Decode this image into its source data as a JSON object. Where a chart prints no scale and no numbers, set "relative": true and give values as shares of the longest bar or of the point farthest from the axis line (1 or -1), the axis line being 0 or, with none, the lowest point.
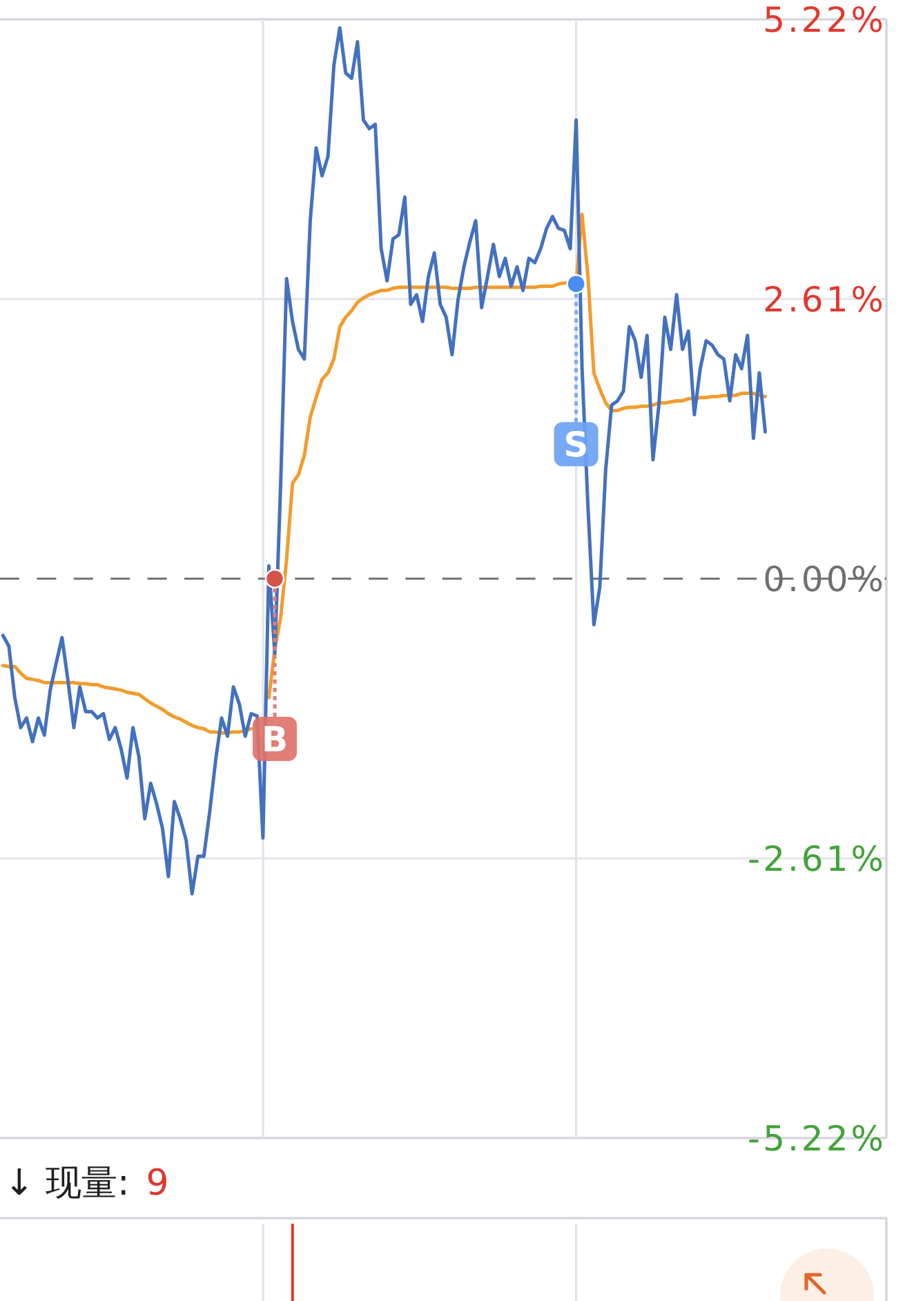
{
  "chart_data": [
    {
      "type": "line",
      "categories": [
        null,
        null,
        null,
        null,
        null,
        null,
        null,
        null,
        null,
        null,
        null,
        null,
        null,
        null,
        null,
        null,
        null,
        null,
        null,
        null,
        null,
        null,
        null,
        null,
        null,
        null,
        null,
        null,
        null,
        null,
        null,
        null,
        null,
        null,
        null,
        null,
        null,
        null,
        null,
        null,
        null,
        null,
        null,
        null,
        null,
        null,
        null,
        null,
        null,
        null,
        null,
        null,
        null,
        null,
        null,
        null,
        null,
        null,
        null,
        null,
        null,
        null,
        null,
        null,
        null,
        null,
        null,
        null,
        null,
        null,
        null,
        null,
        null,
        null,
        null,
        null,
        null,
        null,
        null,
        null,
        null,
        null,
        null,
        null,
        null,
        null,
        null,
        null,
        null,
        null,
        null,
        null,
        null,
        null,
        null,
        null,
        null,
        null,
        null,
        null,
        null,
        null,
        null,
        null,
        null,
        null,
        null,
        null,
        null,
        null,
        null,
        null,
        null,
        null,
        null,
        null,
        null,
        null,
        null,
        null,
        null,
        null,
        null,
        null,
        null,
        null,
        null,
        null,
        null,
        null,
        null,
        null,
        null,
        null,
        null,
        null,
        null,
        null,
        null,
        null,
        null,
        null,
        null,
        null,
        null,
        null,
        null,
        null,
        null,
        null
      ],
      "ylim": [
        -5.22,
        5.22
      ],
      "yticks": [
        {
          "value": 5.22,
          "label": "5.22%"
        },
        {
          "value": 2.61,
          "label": "2.61%"
        },
        {
          "value": 0,
          "label": "0.00%"
        },
        {
          "value": -2.61,
          "label": "-2.61%"
        },
        {
          "value": -5.22,
          "label": "-5.22%"
        }
      ],
      "grid": "y",
      "tick_labels": "y",
      "ref_lines": [
        {
          "axis": "y",
          "value": 0,
          "color": "#707070",
          "line_style": "dashed"
        }
      ],
      "series": [
        {
          "color": "#f29c2e",
          "values": [
            -0.81,
            -0.82,
            -0.82,
            -0.88,
            -0.93,
            -0.94,
            -0.95,
            -0.97,
            -0.97,
            -0.97,
            -0.97,
            -0.97,
            -0.97,
            -0.98,
            -0.98,
            -0.99,
            -0.99,
            -1.01,
            -1.02,
            -1.03,
            -1.04,
            -1.06,
            -1.07,
            -1.08,
            -1.12,
            -1.16,
            -1.19,
            -1.22,
            -1.26,
            -1.29,
            -1.31,
            -1.34,
            -1.37,
            -1.39,
            -1.4,
            -1.43,
            -1.43,
            -1.44,
            -1.44,
            -1.43,
            -1.43,
            -1.42,
            -1.4,
            null,
            null,
            -1.11,
            -0.66,
            -0.36,
            0.18,
            0.89,
            0.97,
            1.15,
            1.51,
            1.69,
            1.86,
            1.92,
            2.05,
            2.35,
            2.44,
            2.5,
            2.58,
            2.62,
            2.65,
            2.67,
            2.69,
            2.69,
            2.71,
            2.72,
            2.72,
            2.72,
            2.72,
            2.72,
            2.72,
            2.72,
            2.72,
            2.72,
            2.71,
            2.71,
            2.71,
            2.71,
            2.72,
            2.72,
            2.72,
            2.72,
            2.72,
            2.72,
            2.72,
            2.72,
            2.72,
            2.72,
            2.72,
            2.73,
            2.73,
            2.73,
            2.75,
            2.76,
            2.76,
            2.75,
            3.4,
            2.82,
            1.92,
            1.77,
            1.64,
            1.57,
            1.57,
            1.59,
            1.6,
            1.6,
            1.61,
            1.61,
            1.62,
            1.64,
            1.64,
            1.65,
            1.66,
            1.66,
            1.68,
            1.68,
            1.69,
            1.69,
            1.7,
            1.7,
            1.71,
            1.71,
            1.71,
            1.73,
            1.73,
            1.73,
            1.71,
            1.7,
            null,
            null,
            null,
            null,
            null,
            null,
            null,
            null,
            null,
            null,
            null,
            null,
            null,
            null,
            null,
            null,
            null,
            null,
            null,
            null
          ]
        },
        {
          "color": "#4371bf",
          "values": [
            -0.53,
            -0.63,
            -1.11,
            -1.39,
            -1.3,
            -1.52,
            -1.3,
            -1.46,
            -1.04,
            -0.79,
            -0.55,
            -0.95,
            -1.39,
            -1.01,
            -1.24,
            -1.24,
            -1.3,
            -1.26,
            -1.5,
            -1.39,
            -1.59,
            -1.86,
            -1.39,
            -1.66,
            -2.24,
            -1.91,
            -2.1,
            -2.33,
            -2.78,
            -2.08,
            -2.24,
            -2.44,
            -2.94,
            -2.59,
            -2.59,
            -2.17,
            -1.69,
            -1.3,
            -1.47,
            -1.01,
            -1.17,
            -1.47,
            -1.26,
            -1.28,
            -2.42,
            0.12,
            -0.7,
            0.89,
            2.8,
            2.4,
            2.14,
            2.05,
            3.34,
            4.02,
            3.76,
            3.94,
            4.79,
            5.14,
            4.72,
            4.67,
            5.01,
            4.28,
            4.2,
            4.24,
            3.08,
            2.78,
            3.17,
            3.21,
            3.56,
            2.56,
            2.65,
            2.4,
            2.82,
            3.04,
            2.56,
            2.44,
            2.09,
            2.6,
            2.91,
            3.14,
            3.34,
            2.53,
            2.82,
            3.12,
            2.82,
            2.99,
            2.73,
            2.91,
            2.69,
            2.99,
            2.95,
            3.08,
            3.27,
            3.38,
            3.27,
            3.25,
            3.08,
            4.28,
            1.96,
            0.67,
            -0.43,
            -0.08,
            1.02,
            1.62,
            1.66,
            1.75,
            2.35,
            2.22,
            1.88,
            2.27,
            1.11,
            1.62,
            2.44,
            2.14,
            2.65,
            2.14,
            2.31,
            1.53,
            1.96,
            2.22,
            2.18,
            2.09,
            2.05,
            1.66,
            2.09,
            1.96,
            2.27,
            1.31,
            1.92,
            1.37,
            null,
            null,
            null,
            null,
            null,
            null,
            null,
            null,
            null,
            null,
            null,
            null,
            null,
            null,
            null,
            null,
            null,
            null,
            null,
            null
          ]
        },
        {
          "type": "scatter",
          "name": "B",
          "color": "#d5544a",
          "marker": "circle",
          "values": [
            null,
            null,
            null,
            null,
            null,
            null,
            null,
            null,
            null,
            null,
            null,
            null,
            null,
            null,
            null,
            null,
            null,
            null,
            null,
            null,
            null,
            null,
            null,
            null,
            null,
            null,
            null,
            null,
            null,
            null,
            null,
            null,
            null,
            null,
            null,
            null,
            null,
            null,
            null,
            null,
            null,
            null,
            null,
            null,
            null,
            null,
            0,
            null,
            null,
            null,
            null,
            null,
            null,
            null,
            null,
            null,
            null,
            null,
            null,
            null,
            null,
            null,
            null,
            null,
            null,
            null,
            null,
            null,
            null,
            null,
            null,
            null,
            null,
            null,
            null,
            null,
            null,
            null,
            null,
            null,
            null,
            null,
            null,
            null,
            null,
            null,
            null,
            null,
            null,
            null,
            null,
            null,
            null,
            null,
            null,
            null,
            null,
            null,
            null,
            null,
            null,
            null,
            null,
            null,
            null,
            null,
            null,
            null,
            null,
            null,
            null,
            null,
            null,
            null,
            null,
            null,
            null,
            null,
            null,
            null,
            null,
            null,
            null,
            null,
            null,
            null,
            null,
            null,
            null,
            null,
            null,
            null,
            null,
            null,
            null,
            null,
            null,
            null,
            null,
            null,
            null,
            null,
            null,
            null,
            null,
            null,
            null,
            null,
            null,
            null
          ]
        },
        {
          "type": "scatter",
          "name": "S",
          "color": "#4a8df2",
          "marker": "circle",
          "values": [
            null,
            null,
            null,
            null,
            null,
            null,
            null,
            null,
            null,
            null,
            null,
            null,
            null,
            null,
            null,
            null,
            null,
            null,
            null,
            null,
            null,
            null,
            null,
            null,
            null,
            null,
            null,
            null,
            null,
            null,
            null,
            null,
            null,
            null,
            null,
            null,
            null,
            null,
            null,
            null,
            null,
            null,
            null,
            null,
            null,
            null,
            null,
            null,
            null,
            null,
            null,
            null,
            null,
            null,
            null,
            null,
            null,
            null,
            null,
            null,
            null,
            null,
            null,
            null,
            null,
            null,
            null,
            null,
            null,
            null,
            null,
            null,
            null,
            null,
            null,
            null,
            null,
            null,
            null,
            null,
            null,
            null,
            null,
            null,
            null,
            null,
            null,
            null,
            null,
            null,
            null,
            null,
            null,
            null,
            null,
            null,
            null,
            2.75,
            null,
            null,
            null,
            null,
            null,
            null,
            null,
            null,
            null,
            null,
            null,
            null,
            null,
            null,
            null,
            null,
            null,
            null,
            null,
            null,
            null,
            null,
            null,
            null,
            null,
            null,
            null,
            null,
            null,
            null,
            null,
            null,
            null,
            null,
            null,
            null,
            null,
            null,
            null,
            null,
            null,
            null,
            null,
            null,
            null,
            null,
            null,
            null,
            null,
            null,
            null,
            null
          ]
        }
      ]
    },
    {
      "type": "bar",
      "title": "↓ 现量:",
      "annotations": [
        "9"
      ],
      "relative": true,
      "color": "#e0352b",
      "tick_labels": false,
      "categories": [
        null,
        null,
        null,
        null,
        null,
        null,
        null,
        null,
        null,
        null,
        null,
        null,
        null,
        null,
        null,
        null,
        null,
        null,
        null,
        null,
        null,
        null,
        null,
        null,
        null,
        null,
        null,
        null,
        null,
        null,
        null,
        null,
        null,
        null,
        null,
        null,
        null,
        null,
        null,
        null,
        null,
        null,
        null,
        null,
        null,
        null,
        null,
        null,
        null,
        null,
        null,
        null,
        null,
        null,
        null,
        null,
        null,
        null,
        null,
        null,
        null,
        null,
        null,
        null,
        null,
        null,
        null,
        null,
        null,
        null,
        null,
        null,
        null,
        null,
        null,
        null,
        null,
        null,
        null,
        null,
        null,
        null,
        null,
        null,
        null,
        null,
        null,
        null,
        null,
        null,
        null,
        null,
        null,
        null,
        null,
        null,
        null,
        null,
        null,
        null,
        null,
        null,
        null,
        null,
        null,
        null,
        null,
        null,
        null,
        null,
        null,
        null,
        null,
        null,
        null,
        null,
        null,
        null,
        null,
        null,
        null,
        null,
        null,
        null,
        null,
        null,
        null,
        null,
        null,
        null,
        null,
        null,
        null,
        null,
        null,
        null,
        null,
        null,
        null,
        null,
        null,
        null,
        null,
        null,
        null,
        null,
        null,
        null,
        null,
        null
      ],
      "values": [
        null,
        null,
        null,
        null,
        null,
        null,
        null,
        null,
        null,
        null,
        null,
        null,
        null,
        null,
        null,
        null,
        null,
        null,
        null,
        null,
        null,
        null,
        null,
        null,
        null,
        null,
        null,
        null,
        null,
        null,
        null,
        null,
        null,
        null,
        null,
        null,
        null,
        null,
        null,
        null,
        null,
        null,
        null,
        null,
        null,
        null,
        null,
        null,
        null,
        1,
        null,
        null,
        null,
        null,
        null,
        null,
        null,
        null,
        null,
        null,
        null,
        null,
        null,
        null,
        null,
        null,
        null,
        null,
        null,
        null,
        null,
        null,
        null,
        null,
        null,
        null,
        null,
        null,
        null,
        null,
        null,
        null,
        null,
        null,
        null,
        null,
        null,
        null,
        null,
        null,
        null,
        null,
        null,
        null,
        null,
        null,
        null,
        null,
        null,
        null,
        null,
        null,
        null,
        null,
        null,
        null,
        null,
        null,
        null,
        null,
        null,
        null,
        null,
        null,
        null,
        null,
        null,
        null,
        null,
        null,
        null,
        null,
        null,
        null,
        null,
        null,
        null,
        null,
        null,
        null,
        null,
        null,
        null,
        null,
        null,
        null,
        null,
        null,
        null,
        null,
        null,
        null,
        null,
        null,
        null,
        null,
        null,
        null,
        null,
        null
      ]
    }
  ]
}
